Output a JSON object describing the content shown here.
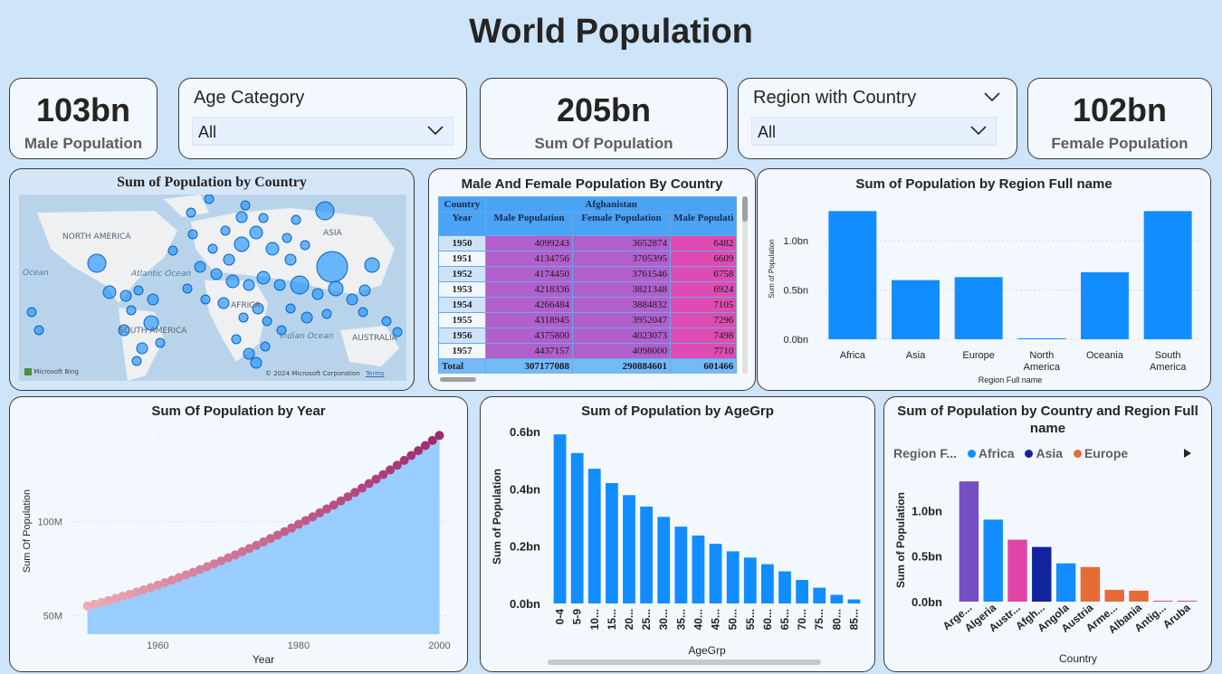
{
  "page": {
    "title": "World Population"
  },
  "kpis": {
    "male": {
      "value": "103bn",
      "label": "Male Population"
    },
    "sum": {
      "value": "205bn",
      "label": "Sum Of Population"
    },
    "female": {
      "value": "102bn",
      "label": "Female Population"
    }
  },
  "slicers": {
    "age": {
      "title": "Age Category",
      "value": "All"
    },
    "region": {
      "title": "Region with Country",
      "value": "All"
    }
  },
  "map": {
    "title": "Sum of Population by Country",
    "labels": [
      "NORTH AMERICA",
      "ASIA",
      "Atlantic Ocean",
      "Ocean",
      "AFRICA",
      "SOUTH AMERICA",
      "Indian Ocean",
      "AUSTRALIA"
    ],
    "credit": "Microsoft Bing",
    "copyright": "© 2024 Microsoft Corporation",
    "terms": "Terms"
  },
  "matrix": {
    "title": "Male And Female Population By Country",
    "header_country": "Country",
    "header_year": "Year",
    "country": "Afghanistan",
    "columns": [
      "Male Population",
      "Female Population",
      "Male Populati"
    ],
    "rows": [
      {
        "year": "1950",
        "male": "4099243",
        "female": "3652874",
        "next": "6482"
      },
      {
        "year": "1951",
        "male": "4134756",
        "female": "3705395",
        "next": "6609"
      },
      {
        "year": "1952",
        "male": "4174450",
        "female": "3761546",
        "next": "6758"
      },
      {
        "year": "1953",
        "male": "4218336",
        "female": "3821348",
        "next": "6924"
      },
      {
        "year": "1954",
        "male": "4266484",
        "female": "3884832",
        "next": "7105"
      },
      {
        "year": "1955",
        "male": "4318945",
        "female": "3952047",
        "next": "7296"
      },
      {
        "year": "1956",
        "male": "4375800",
        "female": "4023073",
        "next": "7498"
      },
      {
        "year": "1957",
        "male": "4437157",
        "female": "4098000",
        "next": "7710"
      }
    ],
    "total": {
      "label": "Total",
      "male": "307177088",
      "female": "290884601",
      "next": "601466"
    }
  },
  "colors": {
    "bar": "#118dff",
    "navy": "#12239e",
    "magenta": "#e044a7",
    "purple": "#744ec2",
    "orange": "#e66c37",
    "area": "#99ccff"
  },
  "charts": {
    "region_title": "Sum of Population by Region Full name",
    "year_title": "Sum Of Population by Year",
    "age_title": "Sum of Population by AgeGrp",
    "country_title": "Sum of Population by Country and Region Full name",
    "legend_title": "Region F...",
    "legend": [
      {
        "name": "Africa",
        "color": "#118dff"
      },
      {
        "name": "Asia",
        "color": "#12239e"
      },
      {
        "name": "Europe",
        "color": "#e66c37"
      }
    ]
  },
  "chart_data": [
    {
      "type": "bar",
      "title": "Sum of Population by Region Full name",
      "xlabel": "Region Full name",
      "ylabel": "Sum of Population",
      "categories": [
        "Africa",
        "Asia",
        "Europe",
        "North America",
        "Oceania",
        "South America"
      ],
      "values": [
        1.3,
        0.6,
        0.63,
        0.01,
        0.68,
        1.3
      ],
      "unit": "bn",
      "yticks": [
        "0.0bn",
        "0.5bn",
        "1.0bn"
      ],
      "ylim": [
        0,
        1.45
      ]
    },
    {
      "type": "area",
      "title": "Sum Of Population by Year",
      "xlabel": "Year",
      "ylabel": "Sum Of Population",
      "xticks": [
        "1960",
        "1980",
        "2000"
      ],
      "yticks": [
        "50M",
        "100M"
      ],
      "x": [
        1950,
        1951,
        1952,
        1953,
        1954,
        1955,
        1956,
        1957,
        1958,
        1959,
        1960,
        1961,
        1962,
        1963,
        1964,
        1965,
        1966,
        1967,
        1968,
        1969,
        1970,
        1971,
        1972,
        1973,
        1974,
        1975,
        1976,
        1977,
        1978,
        1979,
        1980,
        1981,
        1982,
        1983,
        1984,
        1985,
        1986,
        1987,
        1988,
        1989,
        1990,
        1991,
        1992,
        1993,
        1994,
        1995,
        1996,
        1997,
        1998,
        1999,
        2000
      ],
      "values": [
        55.1,
        56.0,
        57.0,
        58.0,
        59.1,
        60.2,
        61.3,
        62.5,
        63.7,
        64.9,
        66.2,
        67.5,
        68.8,
        70.2,
        71.6,
        73.0,
        74.5,
        76.0,
        77.5,
        79.1,
        80.7,
        82.3,
        84.0,
        85.7,
        87.4,
        89.2,
        91.0,
        92.8,
        94.7,
        96.6,
        98.6,
        100.6,
        102.6,
        104.7,
        106.8,
        108.9,
        111.1,
        113.3,
        115.6,
        117.9,
        120.3,
        122.7,
        125.1,
        127.6,
        130.1,
        132.7,
        135.3,
        137.9,
        140.6,
        143.3,
        146.0
      ],
      "ylim": [
        40,
        150
      ],
      "xlim": [
        1948,
        2002
      ]
    },
    {
      "type": "bar",
      "title": "Sum of Population by AgeGrp",
      "xlabel": "AgeGrp",
      "ylabel": "Sum of Population",
      "categories": [
        "0-4",
        "5-9",
        "10...",
        "15...",
        "20...",
        "25...",
        "30...",
        "35...",
        "40...",
        "45...",
        "50...",
        "55...",
        "60...",
        "65...",
        "70...",
        "75...",
        "80...",
        "85..."
      ],
      "values": [
        0.59,
        0.525,
        0.47,
        0.42,
        0.378,
        0.338,
        0.302,
        0.268,
        0.237,
        0.208,
        0.182,
        0.16,
        0.137,
        0.112,
        0.082,
        0.055,
        0.03,
        0.014
      ],
      "unit": "bn",
      "yticks": [
        "0.0bn",
        "0.2bn",
        "0.4bn",
        "0.6bn"
      ],
      "ylim": [
        0,
        0.6
      ]
    },
    {
      "type": "bar",
      "title": "Sum of Population by Country and Region Full name",
      "xlabel": "Country",
      "ylabel": "Sum of Population",
      "categories": [
        "Arge...",
        "Algeria",
        "Austr...",
        "Afgh...",
        "Angola",
        "Austria",
        "Arme...",
        "Albania",
        "Antig...",
        "Aruba"
      ],
      "values": [
        1.32,
        0.9,
        0.68,
        0.6,
        0.42,
        0.38,
        0.13,
        0.12,
        0.01,
        0.01
      ],
      "colors": [
        "#744ec2",
        "#118dff",
        "#e044a7",
        "#12239e",
        "#118dff",
        "#e66c37",
        "#e66c37",
        "#e66c37",
        "#e044a7",
        "#e044a7"
      ],
      "unit": "bn",
      "yticks": [
        "0.0bn",
        "0.5bn",
        "1.0bn"
      ],
      "ylim": [
        0,
        1.45
      ]
    }
  ]
}
